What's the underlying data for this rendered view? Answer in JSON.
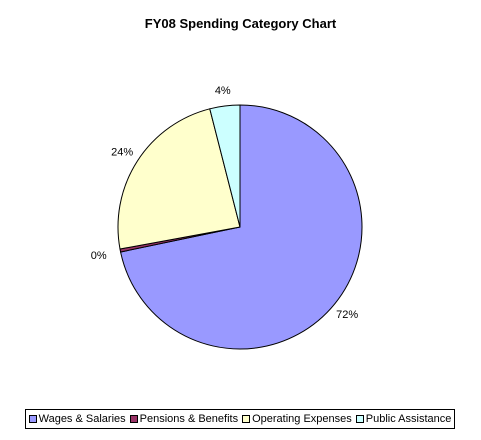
{
  "chart_data": {
    "type": "pie",
    "title": "FY08 Spending Category Chart",
    "slices": [
      {
        "name": "Wages & Salaries",
        "value": 72,
        "label": "72%",
        "color": "#9999ff"
      },
      {
        "name": "Pensions & Benefits",
        "value": 0.4,
        "label": "0%",
        "color": "#993366"
      },
      {
        "name": "Operating Expenses",
        "value": 24,
        "label": "24%",
        "color": "#ffffcc"
      },
      {
        "name": "Public Assistance",
        "value": 4,
        "label": "4%",
        "color": "#ccffff"
      }
    ],
    "start": "top",
    "direction": "clockwise",
    "legend_position": "bottom"
  }
}
